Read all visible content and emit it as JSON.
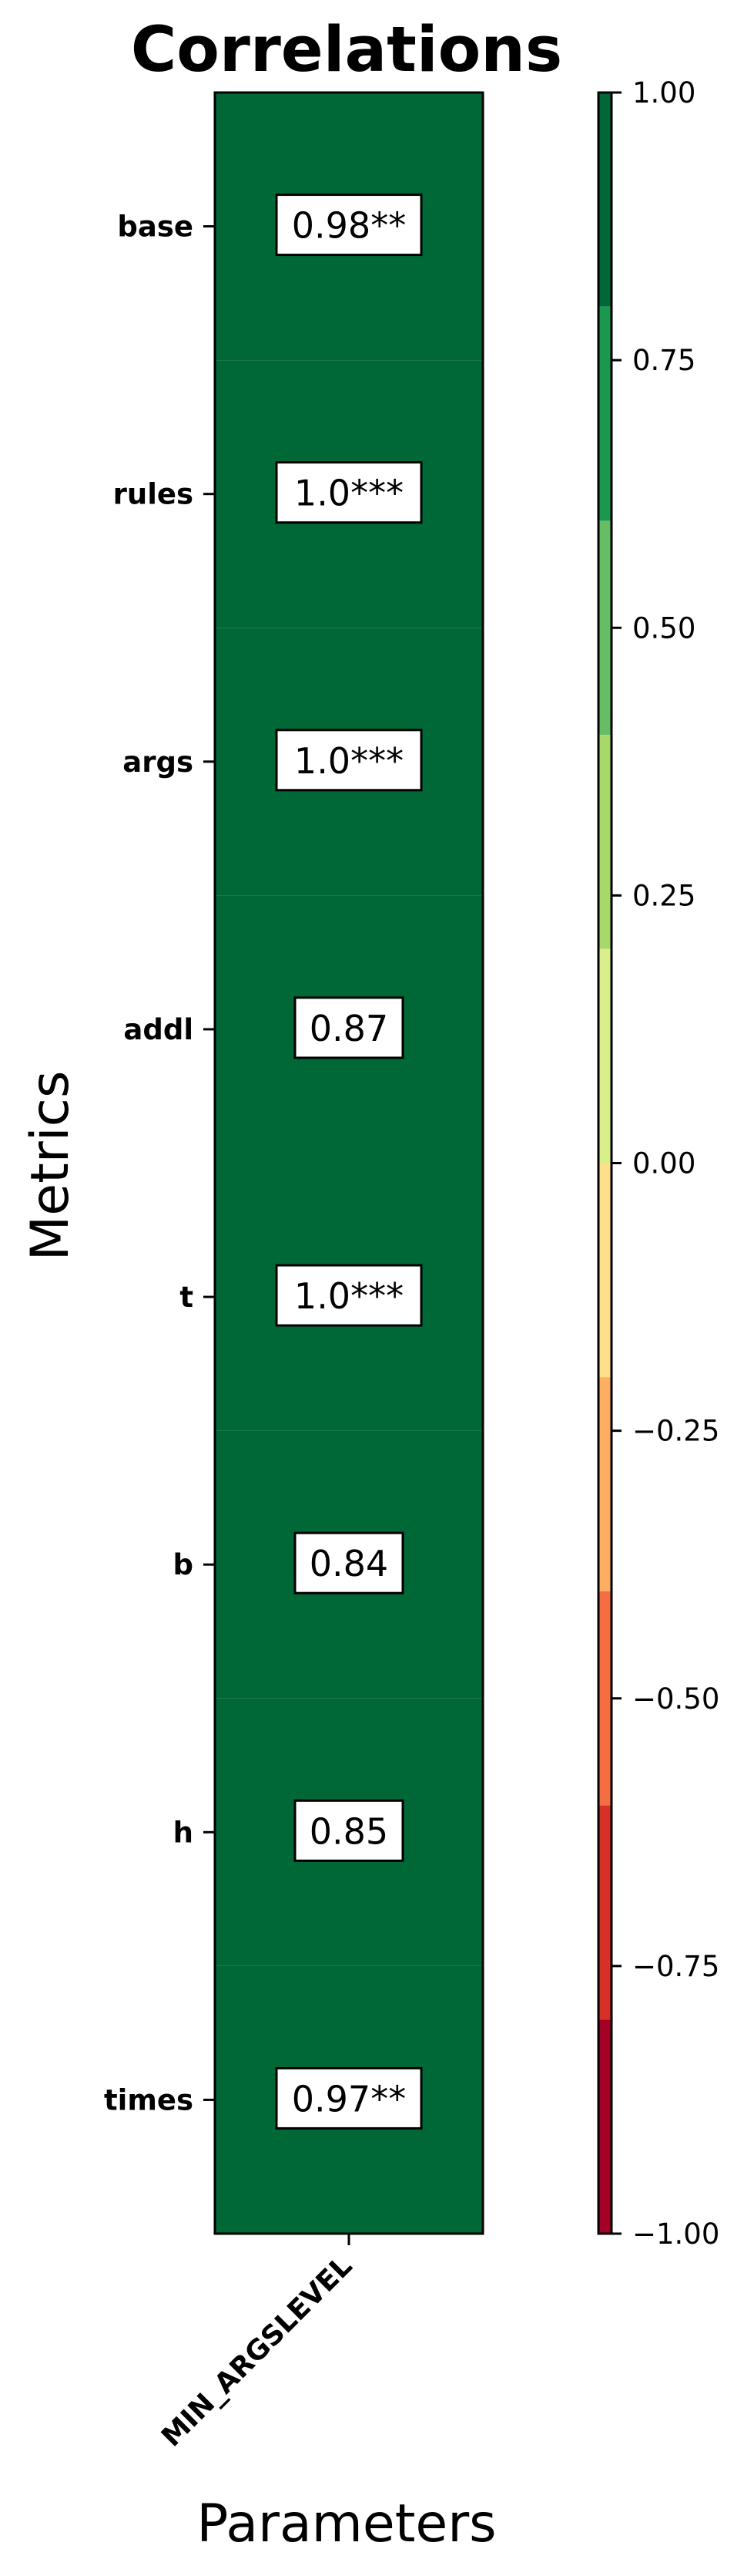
{
  "chart_data": {
    "type": "heatmap",
    "title": "Correlations",
    "xlabel": "Parameters",
    "ylabel": "Metrics",
    "columns": [
      "MIN_ARGSLEVEL"
    ],
    "rows": [
      "base",
      "rules",
      "args",
      "addl",
      "t",
      "b",
      "h",
      "times"
    ],
    "values": [
      [
        0.98
      ],
      [
        1.0
      ],
      [
        1.0
      ],
      [
        0.87
      ],
      [
        1.0
      ],
      [
        0.84
      ],
      [
        0.85
      ],
      [
        0.97
      ]
    ],
    "annotations": [
      [
        "0.98**"
      ],
      [
        "1.0***"
      ],
      [
        "1.0***"
      ],
      [
        "0.87"
      ],
      [
        "1.0***"
      ],
      [
        "0.84"
      ],
      [
        "0.85"
      ],
      [
        "0.97**"
      ]
    ],
    "vmin": -1.0,
    "vmax": 1.0,
    "colormap": "RdYlGn",
    "colorbar": {
      "ticks": [
        1.0,
        0.75,
        0.5,
        0.25,
        0.0,
        -0.25,
        -0.5,
        -0.75,
        -1.0
      ],
      "tick_labels": [
        "1.00",
        "0.75",
        "0.50",
        "0.25",
        "0.00",
        "−0.25",
        "−0.50",
        "−0.75",
        "−1.00"
      ],
      "bins": [
        {
          "from": 0.8,
          "to": 1.0,
          "color": "#006837"
        },
        {
          "from": 0.6,
          "to": 0.8,
          "color": "#1a9850"
        },
        {
          "from": 0.4,
          "to": 0.6,
          "color": "#66bd63"
        },
        {
          "from": 0.2,
          "to": 0.4,
          "color": "#a6d96a"
        },
        {
          "from": 0.0,
          "to": 0.2,
          "color": "#d9ef8b"
        },
        {
          "from": -0.2,
          "to": 0.0,
          "color": "#fee08b"
        },
        {
          "from": -0.4,
          "to": -0.2,
          "color": "#fdae61"
        },
        {
          "from": -0.6,
          "to": -0.4,
          "color": "#f46d43"
        },
        {
          "from": -0.8,
          "to": -0.6,
          "color": "#d73027"
        },
        {
          "from": -1.0,
          "to": -0.8,
          "color": "#a50026"
        }
      ]
    }
  }
}
